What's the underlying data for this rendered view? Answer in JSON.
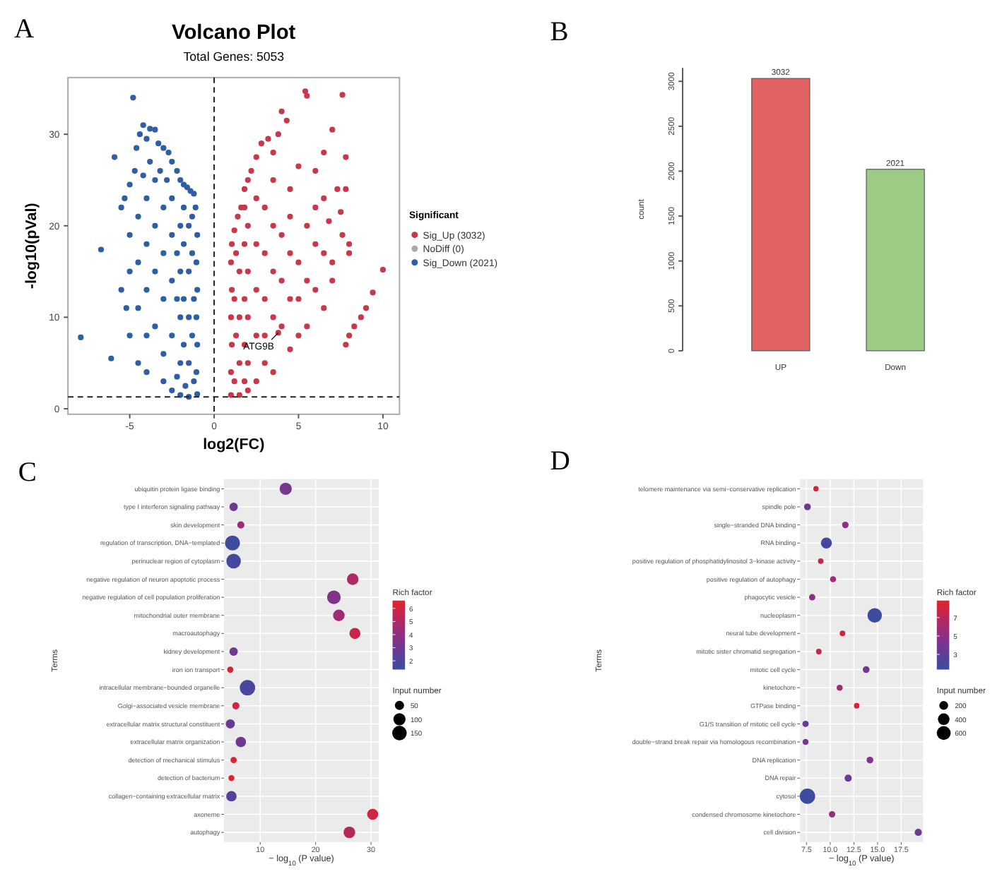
{
  "chart_data": [
    {
      "type": "scatter",
      "title": "Volcano Plot",
      "subtitle": "Total Genes: 5053",
      "xlabel": "log2(FC)",
      "ylabel": "-log10(pVal)",
      "legend_title": "Significant",
      "legend": "right",
      "marker": "circle",
      "xlim": [
        -8.66,
        10.98
      ],
      "ylim": [
        -0.6,
        36.2
      ],
      "xticks": [
        -5,
        0,
        5,
        10
      ],
      "yticks": [
        0,
        10,
        20,
        30
      ],
      "ref_lines": [
        {
          "axis": "x",
          "value": 0,
          "line_style": "dashed"
        },
        {
          "axis": "y",
          "value": 1.3,
          "line_style": "dashed"
        }
      ],
      "annotations": [
        "A",
        {
          "text": "ATG9B",
          "x": 3.8,
          "y": 8.3
        }
      ],
      "series": [
        {
          "name": "Sig_Up (3032)",
          "color": "#c8384a",
          "x": [
            1.0,
            1.0,
            1.05,
            1.0,
            1.05,
            1.0,
            1.05,
            1.2,
            1.4,
            1.6,
            1.8,
            2.0,
            2.2,
            2.5,
            2.8,
            3.2,
            3.5,
            3.8,
            4.0,
            4.3,
            5.4,
            5.5,
            7.6,
            7.0,
            6.5,
            7.8,
            6.0,
            5.0,
            4.5,
            7.3,
            7.8,
            6.5,
            7.5,
            6.8,
            8.0,
            7.6,
            6.5,
            8.0,
            10.0,
            9.4,
            9.0,
            8.7,
            8.3,
            8.0,
            7.8,
            6.5,
            5.5,
            5.0,
            4.5,
            3.0,
            2.5,
            2.0,
            1.5,
            3.5,
            1.5,
            1.5,
            1.5,
            2,
            2,
            2,
            2,
            2.5,
            2.5,
            2.5,
            2.5,
            3,
            3,
            3,
            3,
            3.5,
            3.5,
            3.5,
            3.5,
            4,
            4,
            4,
            4.5,
            4.5,
            4.5,
            5,
            5,
            5.5,
            5.5,
            6,
            6,
            6,
            7,
            7,
            1.2,
            1.3,
            1.2,
            1.3,
            1.8,
            1.8,
            1.8,
            1.8,
            1.8,
            3.8
          ],
          "values": [
            1.5,
            4,
            7,
            10,
            13,
            16,
            18,
            19.5,
            21,
            22,
            24,
            25,
            26,
            27.5,
            29,
            29.5,
            28,
            30,
            32.5,
            31.5,
            34.7,
            34.2,
            34.3,
            30.5,
            28,
            27.5,
            26,
            26.5,
            24,
            24,
            24,
            23,
            21.5,
            20.5,
            18,
            19,
            17,
            17,
            15.2,
            12.7,
            11,
            10,
            9,
            8,
            7,
            11,
            9,
            8,
            6.5,
            5,
            3,
            2,
            1.5,
            4,
            5,
            10,
            15,
            5,
            10,
            15,
            20,
            8,
            13,
            18,
            23,
            8,
            12,
            17,
            22,
            10,
            15,
            20,
            25,
            9,
            14,
            19,
            12,
            17,
            21,
            12,
            16,
            14,
            20,
            13,
            18,
            22,
            14,
            16,
            3,
            8,
            12,
            17,
            3,
            7,
            12,
            18,
            22,
            8.3
          ]
        },
        {
          "name": "NoDiff (0)",
          "color": "#aaaaaa"
        },
        {
          "name": "Sig_Down (2021)",
          "color": "#2f5ea3",
          "x": [
            -1.0,
            -1.05,
            -1.0,
            -1.05,
            -1.0,
            -1.05,
            -1.0,
            -1.1,
            -1.2,
            -1.4,
            -1.6,
            -1.8,
            -2.0,
            -2.2,
            -2.5,
            -2.7,
            -3.0,
            -3.3,
            -3.5,
            -3.8,
            -4.0,
            -4.2,
            -4.4,
            -4.6,
            -4.8,
            -4.7,
            -5.0,
            -5.3,
            -5.5,
            -5.9,
            -6.7,
            -7.9,
            -6.1,
            -5.5,
            -5.2,
            -5.0,
            -4.5,
            -4.0,
            -3.0,
            -2.5,
            -2.0,
            -1.5,
            -1.5,
            -1.5,
            -1.5,
            -1.5,
            -2,
            -2,
            -2,
            -2,
            -2.5,
            -2.5,
            -2.5,
            -2.5,
            -3,
            -3,
            -3,
            -3,
            -3.5,
            -3.5,
            -3.5,
            -3.5,
            -4,
            -4,
            -4,
            -4,
            -4.5,
            -4.5,
            -4.5,
            -5,
            -5,
            -1.2,
            -1.3,
            -1.2,
            -1.3,
            -1.3,
            -1.7,
            -1.8,
            -1.8,
            -1.8,
            -1.8,
            -2.2,
            -2.2,
            -2.2,
            -2.8,
            -3.2,
            -3.8,
            -4.2
          ],
          "values": [
            1.6,
            4,
            7,
            10,
            13,
            16,
            19,
            22,
            23.5,
            23.8,
            24.2,
            24.5,
            25,
            26,
            27,
            28,
            28.5,
            29,
            30.5,
            30.6,
            29.5,
            31,
            30,
            28.5,
            34,
            26,
            24.5,
            23,
            22,
            27.5,
            17.4,
            7.8,
            5.5,
            13,
            11,
            8,
            5,
            4,
            3,
            2,
            1.5,
            1.3,
            5,
            10,
            15,
            20,
            5,
            10,
            15,
            20,
            8,
            14,
            19,
            23,
            6,
            12,
            17,
            22,
            9,
            15,
            20,
            25,
            8,
            13,
            18,
            23,
            11,
            16,
            21,
            15,
            19,
            3,
            8,
            12,
            17,
            21,
            2.5,
            7,
            12,
            18,
            22,
            3.5,
            12,
            17,
            25,
            26,
            27,
            25.5
          ]
        }
      ]
    },
    {
      "type": "bar",
      "categories": [
        "UP",
        "Down"
      ],
      "values": [
        3032,
        2021
      ],
      "colors": [
        "#e06262",
        "#9dcb85"
      ],
      "ylabel": "count",
      "ylim": [
        0,
        3150
      ],
      "yticks": [
        0,
        500,
        1000,
        1500,
        2000,
        2500,
        3000
      ],
      "data_labels": true,
      "annotations": [
        "B"
      ]
    },
    {
      "type": "bubble",
      "orientation": "horizontal",
      "xlabel": "− log$_{10}$ (P value)",
      "ylabel": "Terms",
      "clabel": "Rich factor",
      "legend_title": "Input number",
      "grid": true,
      "xlim": [
        3.47,
        31.4
      ],
      "xticks": [
        10,
        20,
        30
      ],
      "clim": [
        1.33,
        6.6
      ],
      "cticks": [
        2,
        3,
        4,
        5,
        6
      ],
      "size_legend": [
        50,
        100,
        150
      ],
      "annotations": [
        "C"
      ],
      "categories": [
        "ubiquitin protein ligase binding",
        "type I interferon signaling pathway",
        "skin development",
        "regulation of transcription, DNA−templated",
        "perinuclear region of cytoplasm",
        "negative regulation of neuron apoptotic process",
        "negative regulation of cell population proliferation",
        "mitochondrial outer membrane",
        "macroautophagy",
        "kidney development",
        "iron ion transport",
        "intracellular membrane−bounded organelle",
        "Golgi−associated vesicle membrane",
        "extracellular matrix structural constituent",
        "extracellular matrix organization",
        "detection of mechanical stimulus",
        "detection of bacterium",
        "collagen−containing extracellular matrix",
        "axoneme",
        "autophagy"
      ],
      "values": [
        14.6,
        5.2,
        6.5,
        5.0,
        5.2,
        26.7,
        23.3,
        24.2,
        27.1,
        5.2,
        4.6,
        7.7,
        5.6,
        4.6,
        6.5,
        5.2,
        4.8,
        4.8,
        30.3,
        26.1
      ],
      "cvalues": [
        3.2,
        3.0,
        4.5,
        1.5,
        1.6,
        5.0,
        3.5,
        4.5,
        5.8,
        3.0,
        6.3,
        1.8,
        6.0,
        2.8,
        3.0,
        6.3,
        6.5,
        2.2,
        6.0,
        5.2
      ],
      "sizes": [
        100,
        40,
        25,
        160,
        150,
        90,
        130,
        90,
        80,
        40,
        15,
        170,
        25,
        50,
        70,
        15,
        12,
        70,
        80,
        90
      ]
    },
    {
      "type": "bubble",
      "orientation": "horizontal",
      "xlabel": "− log$_{10}$ (P value)",
      "ylabel": "Terms",
      "clabel": "Rich factor",
      "legend_title": "Input number",
      "grid": true,
      "xlim": [
        6.82,
        19.8
      ],
      "xticks": [
        {
          "value": 7.5,
          "label": "7.5"
        },
        {
          "value": 10,
          "label": "10.0"
        },
        {
          "value": 12.5,
          "label": "12.5"
        },
        {
          "value": 15,
          "label": "15.0"
        },
        {
          "value": 17.5,
          "label": "17.5"
        }
      ],
      "clim": [
        1.35,
        8.85
      ],
      "cticks": [
        3,
        5,
        7
      ],
      "size_legend": [
        200,
        400,
        600
      ],
      "annotations": [
        "D"
      ],
      "categories": [
        "telomere maintenance via semi−conservative replication",
        "spindle pole",
        "single−stranded DNA binding",
        "RNA binding",
        "positive regulation of phosphatidylinositol 3−kinase activity",
        "positive regulation of autophagy",
        "phagocytic vesicle",
        "nucleoplasm",
        "neural tube development",
        "mitotic sister chromatid segregation",
        "mitotic cell cycle",
        "kinetochore",
        "GTPase binding",
        "G1/S transition of mitotic cell cycle",
        "double−strand break repair via homologous recombination",
        "DNA replication",
        "DNA repair",
        "cytosol",
        "condensed chromosome kinetochore",
        "cell division"
      ],
      "values": [
        8.5,
        7.6,
        11.6,
        9.6,
        9.0,
        10.3,
        8.1,
        14.7,
        11.3,
        8.8,
        13.8,
        11.0,
        12.8,
        7.4,
        7.4,
        14.2,
        11.9,
        7.6,
        10.2,
        19.3
      ],
      "cvalues": [
        8.5,
        3.5,
        5,
        1.8,
        7.5,
        6,
        4.5,
        1.5,
        8,
        7.5,
        4,
        6,
        8,
        3.5,
        4,
        4.5,
        3.5,
        1.5,
        5.5,
        3.5
      ],
      "sizes": [
        30,
        90,
        80,
        350,
        40,
        60,
        70,
        650,
        40,
        40,
        90,
        60,
        40,
        70,
        60,
        90,
        110,
        750,
        70,
        110
      ]
    }
  ]
}
